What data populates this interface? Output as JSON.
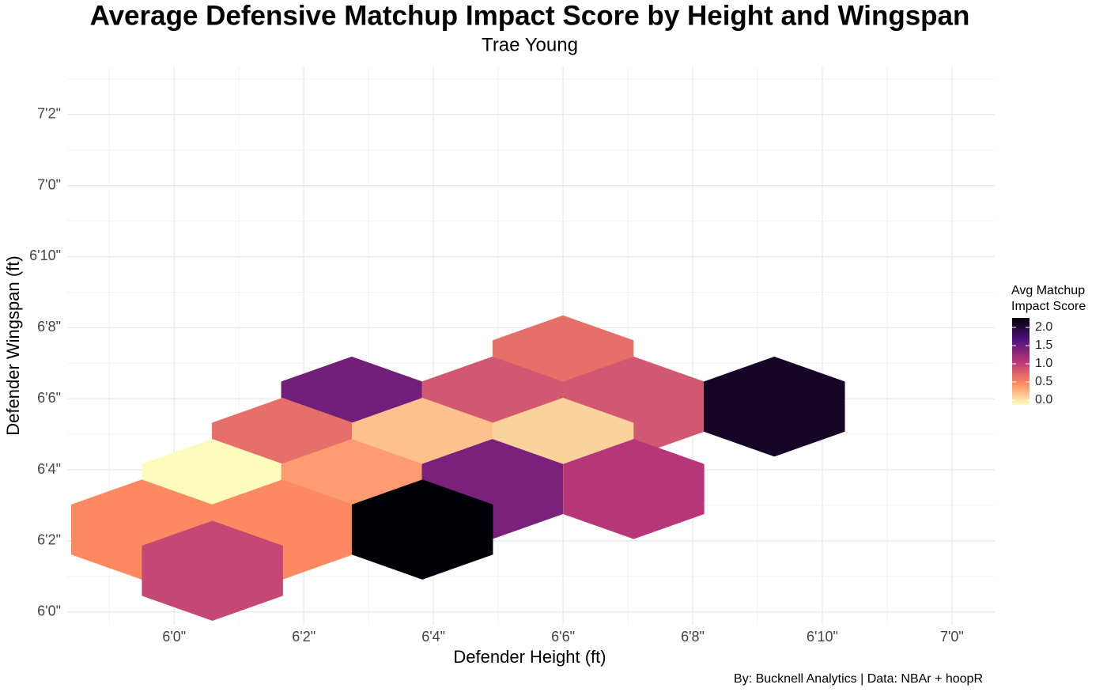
{
  "chart_data": {
    "type": "hexbin",
    "title": "Average Defensive Matchup Impact Score by Height and Wingspan",
    "subtitle": "Trae Young",
    "x_label": "Defender Height (ft)",
    "y_label": "Defender Wingspan (ft)",
    "caption": "By: Bucknell Analytics | Data: NBAr + hoopR",
    "legend_title": [
      "Avg Matchup",
      "Impact Score"
    ],
    "x": [
      78,
      74.74,
      76.91,
      79.09,
      81.26,
      73.67,
      75.83,
      78,
      72.59,
      74.74,
      76.91,
      79.09,
      71.5,
      73.67,
      75.83,
      72.59
    ],
    "y": [
      78.94,
      77.78,
      77.78,
      77.78,
      77.78,
      76.62,
      76.62,
      76.62,
      75.46,
      75.46,
      75.46,
      75.46,
      74.32,
      74.32,
      74.32,
      73.16
    ],
    "values": [
      0.66,
      1.47,
      0.83,
      0.83,
      2.09,
      0.66,
      0.18,
      0.09,
      -0.12,
      0.37,
      1.42,
      1.07,
      0.47,
      0.47,
      2.25,
      0.95
    ],
    "xlim": [
      70.35,
      84.66
    ],
    "ylim": [
      71.64,
      87.33
    ],
    "xticks": [
      {
        "value": 72,
        "label": "6'0\""
      },
      {
        "value": 74,
        "label": "6'2\""
      },
      {
        "value": 76,
        "label": "6'4\""
      },
      {
        "value": 78,
        "label": "6'6\""
      },
      {
        "value": 80,
        "label": "6'8\""
      },
      {
        "value": 82,
        "label": "6'10\""
      },
      {
        "value": 84,
        "label": "7'0\""
      }
    ],
    "yticks": [
      {
        "value": 72,
        "label": "6'0\""
      },
      {
        "value": 74,
        "label": "6'2\""
      },
      {
        "value": 76,
        "label": "6'4\""
      },
      {
        "value": 78,
        "label": "6'6\""
      },
      {
        "value": 80,
        "label": "6'8\""
      },
      {
        "value": 82,
        "label": "6'10\""
      },
      {
        "value": 84,
        "label": "7'0\""
      },
      {
        "value": 86,
        "label": "7'2\""
      }
    ],
    "colorscale": [
      "#fcfdbf",
      "#fc8961",
      "#b73779",
      "#51127c",
      "#000004"
    ],
    "clim": [
      -0.13,
      2.26
    ],
    "cticks": [
      {
        "value": 0,
        "label": "0.0"
      },
      0.5,
      {
        "value": 1,
        "label": "1.0"
      },
      1.5,
      {
        "value": 2,
        "label": "2.0"
      }
    ],
    "grid": true,
    "legend": "right"
  }
}
